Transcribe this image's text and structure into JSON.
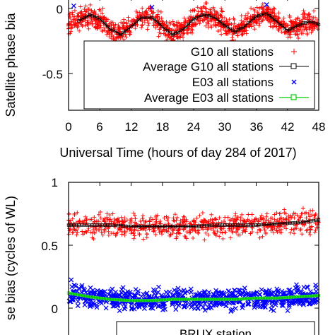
{
  "chart_data": [
    {
      "type": "scatter",
      "title": "",
      "xlabel": "Universal Time (hours of day 284 of 2017)",
      "ylabel": "Satellite phase bia",
      "xlim": [
        0,
        48
      ],
      "ylim": [
        -0.75,
        0.1
      ],
      "xticks": [
        "0",
        "6",
        "12",
        "18",
        "24",
        "30",
        "36",
        "42",
        "48"
      ],
      "yticks": [
        "0",
        "-0.5"
      ],
      "grid": false,
      "legend_position": "inside-bottom",
      "series": [
        {
          "name": "G10 all stations",
          "marker": "+",
          "color": "#ff0000",
          "x": [
            0,
            2,
            4,
            6,
            8,
            10,
            12,
            14,
            16,
            18,
            20,
            22,
            24,
            26,
            28,
            30,
            32,
            34,
            36,
            38,
            40,
            42,
            44,
            46,
            48
          ],
          "y": [
            -0.12,
            -0.09,
            -0.05,
            -0.08,
            -0.16,
            -0.2,
            -0.14,
            -0.07,
            -0.07,
            -0.14,
            -0.2,
            -0.16,
            -0.08,
            -0.05,
            -0.07,
            -0.13,
            -0.18,
            -0.13,
            -0.06,
            -0.04,
            -0.1,
            -0.17,
            -0.13,
            -0.1,
            -0.12
          ],
          "spread": 0.12
        },
        {
          "name": "Average G10 all stations",
          "marker": "square-line",
          "color": "#000000",
          "x": [
            2,
            4,
            6,
            8,
            10,
            12,
            14,
            16,
            18,
            20,
            22,
            24,
            26,
            28,
            30,
            32,
            34,
            36,
            38,
            40,
            42,
            44,
            46,
            48
          ],
          "y": [
            -0.09,
            -0.05,
            -0.08,
            -0.16,
            -0.2,
            -0.14,
            -0.07,
            -0.07,
            -0.14,
            -0.2,
            -0.16,
            -0.08,
            -0.05,
            -0.07,
            -0.13,
            -0.18,
            -0.13,
            -0.06,
            -0.04,
            -0.1,
            -0.17,
            -0.13,
            -0.1,
            -0.12
          ]
        },
        {
          "name": "E03 all stations",
          "marker": "x",
          "color": "#0000ff",
          "x": [
            1,
            16,
            38
          ],
          "y": [
            0.02,
            0.01,
            0.03
          ]
        },
        {
          "name": "Average E03 all stations",
          "marker": "square-line",
          "color": "#00cc00",
          "x": [],
          "y": []
        }
      ]
    },
    {
      "type": "scatter",
      "title": "",
      "xlabel": "",
      "ylabel": "se bias (cycles of WL)",
      "xlim": [
        0,
        48
      ],
      "ylim": [
        -0.2,
        1
      ],
      "yticks": [
        "1",
        "0.5",
        "0"
      ],
      "grid": false,
      "legend_position": "inside-bottom",
      "legend_text": "BRUX station",
      "series": [
        {
          "name": "",
          "marker": "+",
          "color": "#ff0000",
          "x": [
            0,
            4,
            8,
            12,
            16,
            20,
            24,
            28,
            32,
            36,
            40,
            44,
            48
          ],
          "y": [
            0.66,
            0.66,
            0.66,
            0.65,
            0.65,
            0.65,
            0.65,
            0.66,
            0.66,
            0.66,
            0.67,
            0.68,
            0.7
          ],
          "spread": 0.14
        },
        {
          "name": "",
          "marker": "square-line",
          "color": "#000000",
          "x": [
            0,
            4,
            8,
            12,
            16,
            20,
            24,
            28,
            32,
            36,
            40,
            44,
            48
          ],
          "y": [
            0.66,
            0.66,
            0.66,
            0.65,
            0.65,
            0.65,
            0.65,
            0.66,
            0.66,
            0.66,
            0.67,
            0.68,
            0.7
          ]
        },
        {
          "name": "",
          "marker": "x",
          "color": "#0000ff",
          "x": [
            0,
            4,
            8,
            12,
            16,
            20,
            24,
            28,
            32,
            36,
            40,
            44,
            48
          ],
          "y": [
            0.12,
            0.09,
            0.07,
            0.06,
            0.06,
            0.07,
            0.07,
            0.07,
            0.07,
            0.08,
            0.08,
            0.09,
            0.1
          ],
          "spread": 0.12
        },
        {
          "name": "",
          "marker": "square-line",
          "color": "#00cc00",
          "x": [
            0,
            4,
            8,
            12,
            16,
            20,
            24,
            28,
            32,
            36,
            40,
            44,
            48
          ],
          "y": [
            0.12,
            0.09,
            0.07,
            0.06,
            0.06,
            0.07,
            0.07,
            0.07,
            0.07,
            0.08,
            0.08,
            0.09,
            0.1
          ]
        }
      ]
    }
  ]
}
